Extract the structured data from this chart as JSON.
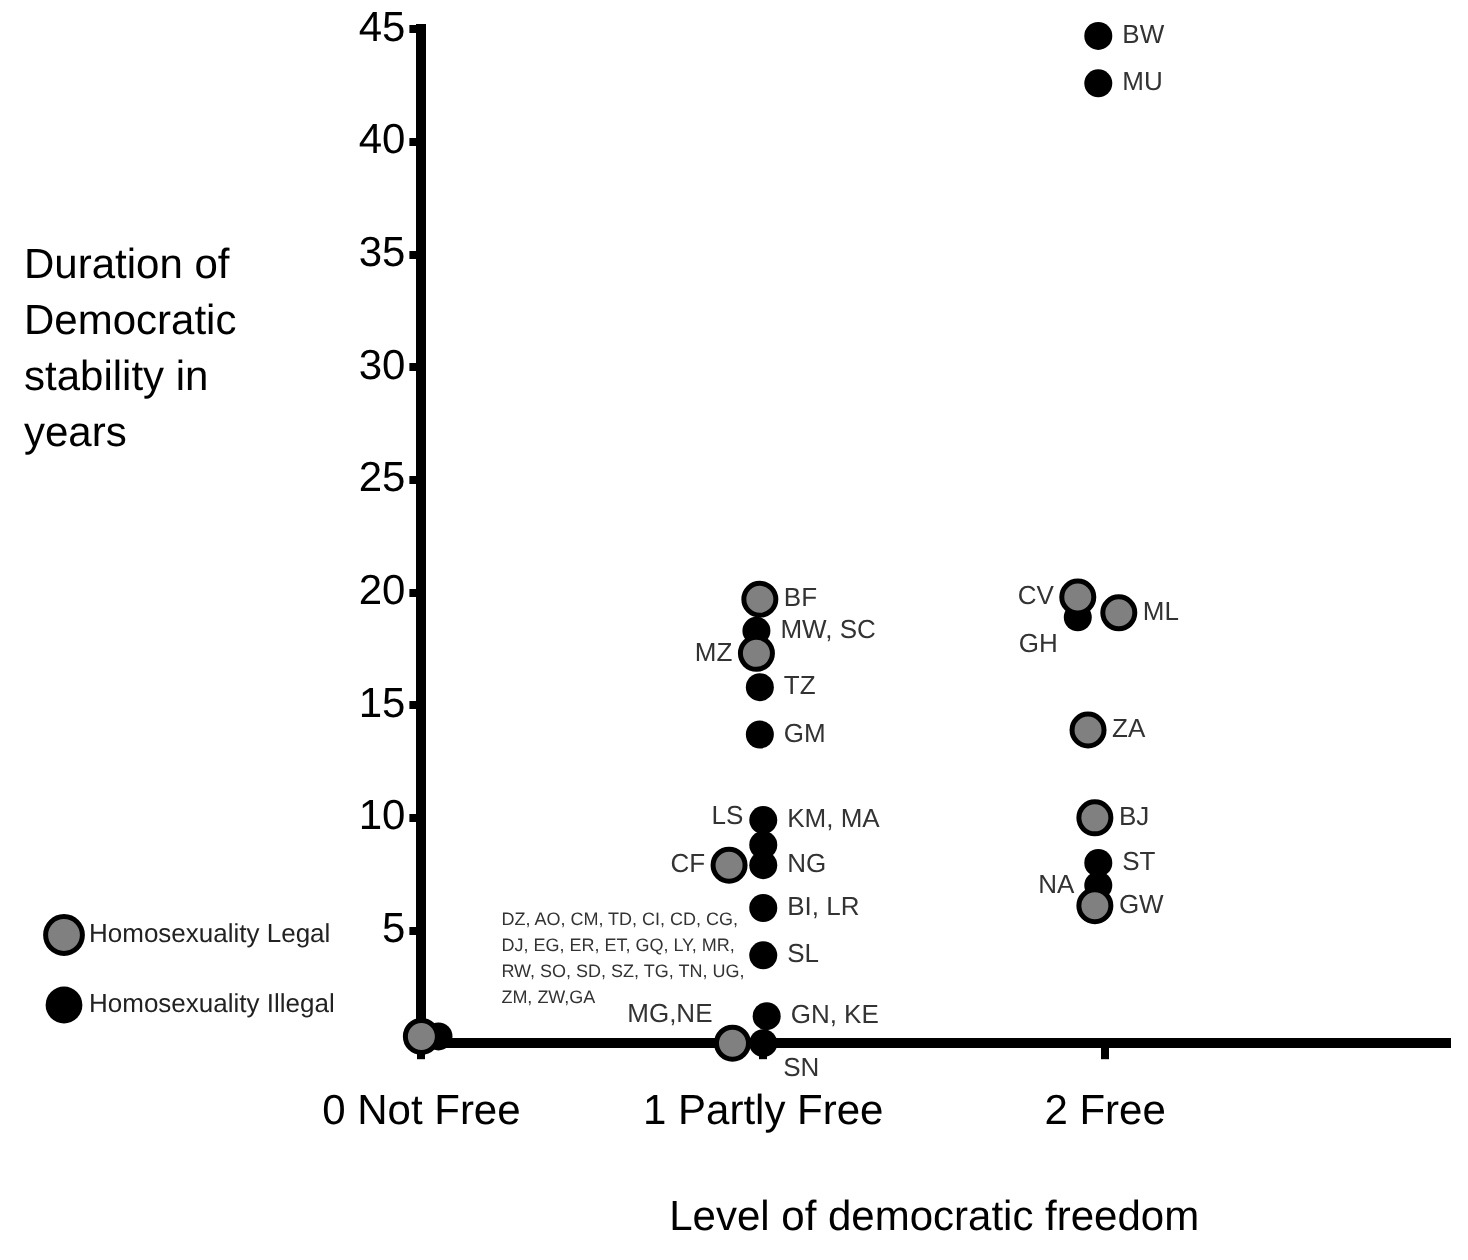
{
  "chart_data": {
    "type": "scatter",
    "xlabel": "Level of democratic freedom",
    "ylabel": "Duration of Democratic stability in years",
    "xlim": [
      0,
      3
    ],
    "xticks": [
      {
        "value": 0,
        "label": "0 Not Free"
      },
      {
        "value": 1,
        "label": "1 Partly Free"
      },
      {
        "value": 2,
        "label": "2 Free"
      }
    ],
    "ylim": [
      0,
      45
    ],
    "yticks": [
      5,
      10,
      15,
      20,
      25,
      30,
      35,
      40,
      45
    ],
    "grid": false,
    "legend": "left",
    "marker": "circle",
    "series": [
      {
        "name": "Homosexuality Legal",
        "color": "#808080",
        "x": [
          0,
          0.91,
          0.9,
          0.99,
          0.98,
          1.92,
          2.04,
          1.95,
          1.97,
          1.97
        ],
        "values": [
          0.3,
          0,
          7.9,
          19.7,
          17.3,
          19.8,
          19.1,
          13.9,
          10,
          6.1
        ]
      },
      {
        "name": "Homosexuality Illegal",
        "color": "#000000",
        "x": [
          0.05,
          0.98,
          0.99,
          0.99,
          1,
          1,
          1,
          1,
          1,
          1.01,
          1,
          1.98,
          1.98,
          1.92,
          1.98,
          1.98
        ],
        "values": [
          0.3,
          18.3,
          15.8,
          13.7,
          9.9,
          8.8,
          7.9,
          6,
          3.9,
          1.2,
          0,
          44.7,
          42.6,
          18.9,
          8,
          7
        ]
      }
    ],
    "annotations": [
      "DZ, AO, CM, TD, CI, CD, CG, DJ, EG, ER, ET, GQ, LY, MR, RW, SO, SD, SZ, TG, TN, UG, ZM, ZW,GA",
      {
        "text": "BF",
        "x": 0.99,
        "y": 19.7
      },
      {
        "text": "MW, SC",
        "x": 0.98,
        "y": 18.3
      },
      {
        "text": "MZ",
        "x": 0.98,
        "y": 17.3
      },
      {
        "text": "TZ",
        "x": 0.99,
        "y": 15.8
      },
      {
        "text": "GM",
        "x": 0.99,
        "y": 13.7
      },
      {
        "text": "KM, MA",
        "x": 1,
        "y": 9.9
      },
      {
        "text": "LS",
        "x": 1,
        "y": 8.8
      },
      {
        "text": "NG",
        "x": 1,
        "y": 7.9
      },
      {
        "text": "CF",
        "x": 0.9,
        "y": 7.9
      },
      {
        "text": "BI, LR",
        "x": 1,
        "y": 6
      },
      {
        "text": "SL",
        "x": 1,
        "y": 3.9
      },
      {
        "text": "GN, KE",
        "x": 1.01,
        "y": 1.2
      },
      {
        "text": "SN",
        "x": 1,
        "y": 0
      },
      {
        "text": "MG,NE",
        "x": 0.91,
        "y": 0
      },
      {
        "text": "BW",
        "x": 1.98,
        "y": 44.7
      },
      {
        "text": "MU",
        "x": 1.98,
        "y": 42.6
      },
      {
        "text": "CV",
        "x": 1.92,
        "y": 19.8
      },
      {
        "text": "ML",
        "x": 2.04,
        "y": 19.1
      },
      {
        "text": "GH",
        "x": 1.92,
        "y": 18.9
      },
      {
        "text": "ZA",
        "x": 1.95,
        "y": 13.9
      },
      {
        "text": "BJ",
        "x": 1.97,
        "y": 10
      },
      {
        "text": "ST",
        "x": 1.98,
        "y": 8
      },
      {
        "text": "NA",
        "x": 1.98,
        "y": 7
      },
      {
        "text": "GW",
        "x": 1.97,
        "y": 6.1
      }
    ]
  }
}
